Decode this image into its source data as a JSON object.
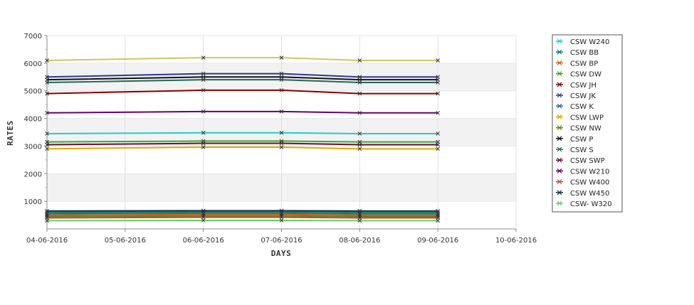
{
  "chart_data": {
    "type": "line",
    "title": "",
    "xlabel": "DAYS",
    "ylabel": "RATES",
    "x_ticks": [
      "04-06-2016",
      "05-06-2016",
      "06-06-2016",
      "07-06-2016",
      "08-06-2016",
      "09-06-2016",
      "10-06-2016"
    ],
    "x": [
      "04-06-2016",
      "06-06-2016",
      "07-06-2016",
      "08-06-2016",
      "09-06-2016"
    ],
    "xlim": [
      "04-06-2016",
      "10-06-2016"
    ],
    "ylim": [
      0,
      7000
    ],
    "y_ticks": [
      1000,
      2000,
      3000,
      4000,
      5000,
      6000,
      7000
    ],
    "grid": true,
    "legend_position": "right",
    "series": [
      {
        "name": "CSW  W240",
        "color": "#22cccc",
        "values": [
          3450,
          3480,
          3480,
          3450,
          3450
        ]
      },
      {
        "name": "CSW BB",
        "color": "#008866",
        "values": [
          600,
          620,
          620,
          600,
          600
        ]
      },
      {
        "name": "CSW BP",
        "color": "#cc6600",
        "values": [
          500,
          520,
          520,
          500,
          500
        ]
      },
      {
        "name": "CSW DW",
        "color": "#33aa33",
        "values": [
          3150,
          3180,
          3180,
          3150,
          3150
        ]
      },
      {
        "name": "CSW JH",
        "color": "#880000",
        "values": [
          4900,
          5020,
          5020,
          4900,
          4900
        ]
      },
      {
        "name": "CSW JK",
        "color": "#333399",
        "values": [
          5500,
          5620,
          5620,
          5500,
          5500
        ]
      },
      {
        "name": "CSW K",
        "color": "#336699",
        "values": [
          550,
          570,
          570,
          550,
          550
        ]
      },
      {
        "name": "CSW LWP",
        "color": "#ddaa00",
        "values": [
          2900,
          2960,
          2960,
          2900,
          2900
        ]
      },
      {
        "name": "CSW NW",
        "color": "#777722",
        "values": [
          450,
          470,
          470,
          450,
          450
        ]
      },
      {
        "name": "CSW P",
        "color": "#111111",
        "values": [
          5400,
          5500,
          5500,
          5400,
          5400
        ]
      },
      {
        "name": "CSW S",
        "color": "#226655",
        "values": [
          5300,
          5400,
          5400,
          5300,
          5300
        ]
      },
      {
        "name": "CSW SWP",
        "color": "#661133",
        "values": [
          3050,
          3100,
          3100,
          3050,
          3050
        ]
      },
      {
        "name": "CSW W210",
        "color": "#660066",
        "values": [
          4200,
          4250,
          4250,
          4200,
          4200
        ]
      },
      {
        "name": "CSW W400",
        "color": "#aa5533",
        "values": [
          400,
          420,
          420,
          400,
          400
        ]
      },
      {
        "name": "CSW W450",
        "color": "#113344",
        "values": [
          650,
          660,
          660,
          650,
          650
        ]
      },
      {
        "name": "CSW- W320",
        "color": "#66cc66",
        "values": [
          300,
          310,
          310,
          300,
          300
        ]
      },
      {
        "name": "",
        "color": "#c8c864",
        "values": [
          6100,
          6200,
          6200,
          6100,
          6100
        ]
      }
    ]
  }
}
